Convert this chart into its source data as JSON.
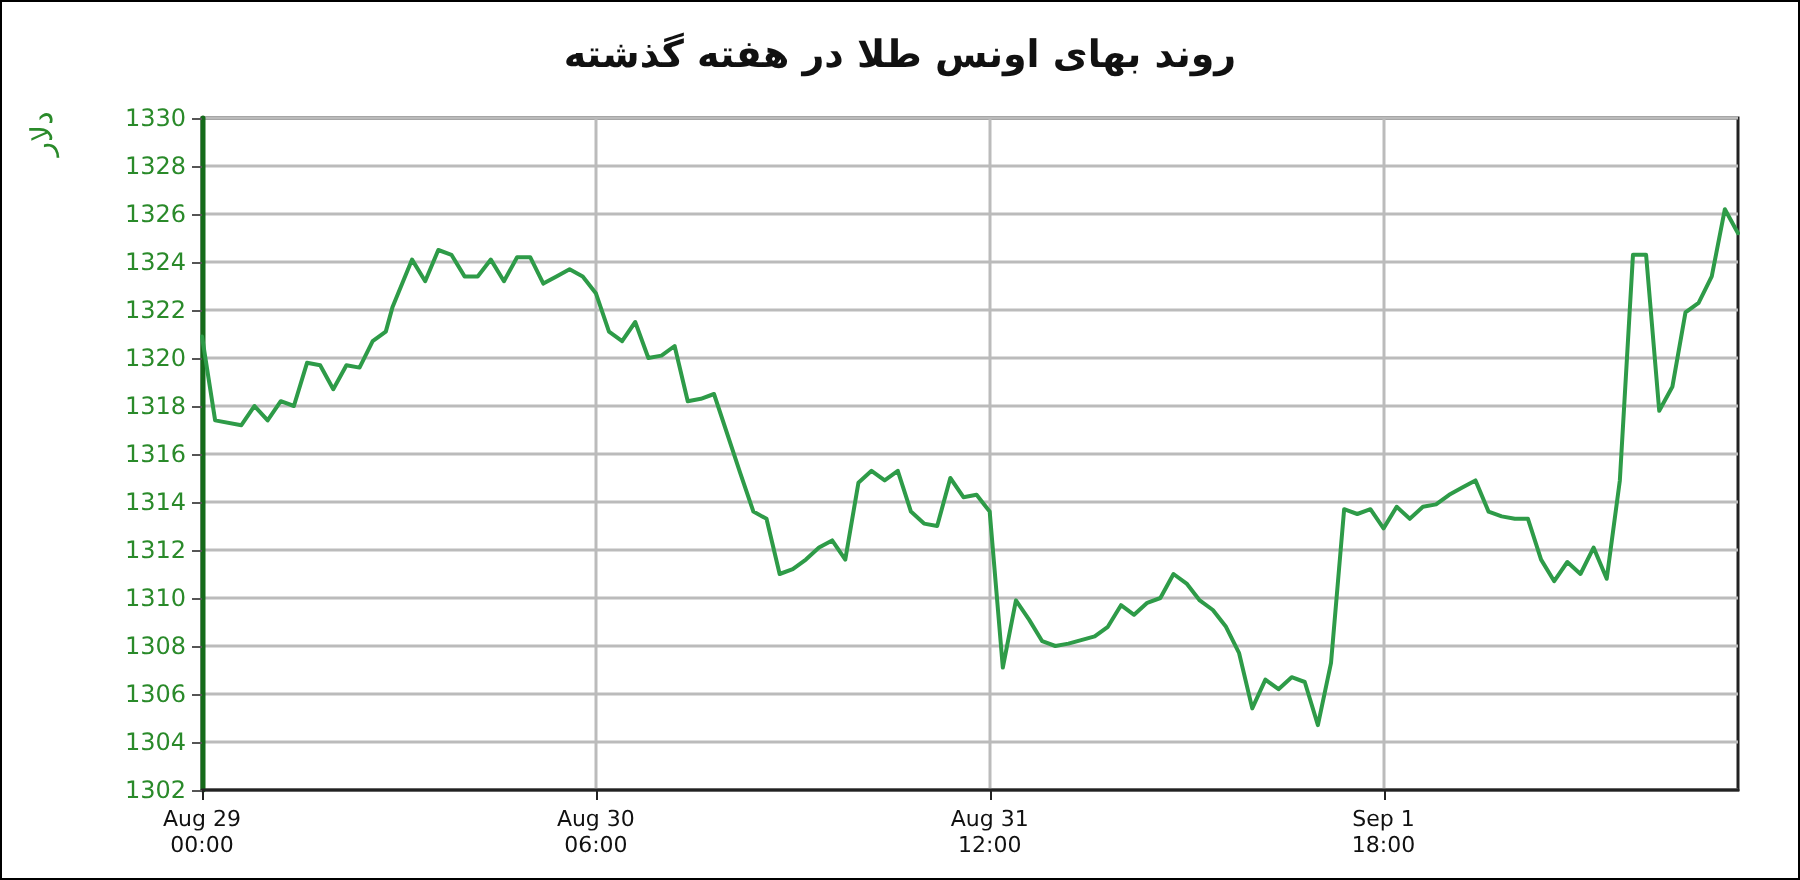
{
  "chart_data": {
    "type": "line",
    "title": "روند بهای اونس طلا در هفته گذشته",
    "ylabel": "دلار",
    "x": [
      "--08-29T00:00",
      "--08-29T01:00",
      "--08-29T03:00",
      "--08-29T04:00",
      "--08-29T05:00",
      "--08-29T06:00",
      "--08-29T07:00",
      "--08-29T08:00",
      "--08-29T09:00",
      "--08-29T10:00",
      "--08-29T11:00",
      "--08-29T12:00",
      "--08-29T13:00",
      "--08-29T14:00",
      "--08-29T14:30",
      "--08-29T16:00",
      "--08-29T17:00",
      "--08-29T18:00",
      "--08-29T19:00",
      "--08-29T20:00",
      "--08-29T21:00",
      "--08-29T22:00",
      "--08-29T23:00",
      "--08-30T00:00",
      "--08-30T01:00",
      "--08-30T02:00",
      "--08-30T03:00",
      "--08-30T04:00",
      "--08-30T05:00",
      "--08-30T06:00",
      "--08-30T07:00",
      "--08-30T08:00",
      "--08-30T09:00",
      "--08-30T10:00",
      "--08-30T11:00",
      "--08-30T12:00",
      "--08-30T13:00",
      "--08-30T14:00",
      "--08-30T15:00",
      "--08-30T17:00",
      "--08-30T18:00",
      "--08-30T19:00",
      "--08-30T20:00",
      "--08-30T21:00",
      "--08-30T22:00",
      "--08-30T23:00",
      "--08-31T00:00",
      "--08-31T01:00",
      "--08-31T02:00",
      "--08-31T03:00",
      "--08-31T04:00",
      "--08-31T05:00",
      "--08-31T06:00",
      "--08-31T07:00",
      "--08-31T08:00",
      "--08-31T09:00",
      "--08-31T10:00",
      "--08-31T11:00",
      "--08-31T12:00",
      "--08-31T13:00",
      "--08-31T14:00",
      "--08-31T15:00",
      "--08-31T16:00",
      "--08-31T17:00",
      "--08-31T18:00",
      "--08-31T20:00",
      "--08-31T21:00",
      "--08-31T22:00",
      "--08-31T23:00",
      "--09-01T00:00",
      "--09-01T01:00",
      "--09-01T02:00",
      "--09-01T03:00",
      "--09-01T04:00",
      "--09-01T05:00",
      "--09-01T06:00",
      "--09-01T07:00",
      "--09-01T08:00",
      "--09-01T09:00",
      "--09-01T10:00",
      "--09-01T11:00",
      "--09-01T12:00",
      "--09-01T13:00",
      "--09-01T14:00",
      "--09-01T15:00",
      "--09-01T16:00",
      "--09-01T17:00",
      "--09-01T18:00",
      "--09-01T19:00",
      "--09-01T20:00",
      "--09-01T21:00",
      "--09-01T22:00",
      "--09-01T23:00",
      "--09-02T00:00",
      "--09-02T01:00",
      "--09-02T02:00",
      "--09-02T03:00",
      "--09-02T04:00",
      "--09-02T05:00",
      "--09-02T06:00",
      "--09-02T07:00",
      "--09-02T08:00",
      "--09-02T09:00",
      "--09-02T10:00",
      "--09-02T11:00",
      "--09-02T12:00",
      "--09-02T13:00",
      "--09-02T14:00",
      "--09-02T15:00",
      "--09-02T16:00",
      "--09-02T17:00",
      "--09-02T18:00",
      "--09-02T19:00",
      "--09-02T20:00",
      "--09-02T21:00"
    ],
    "series": [
      {
        "color": "#2e9b48",
        "values": [
          1320.9,
          1317.4,
          1317.2,
          1318.0,
          1317.4,
          1318.2,
          1318.0,
          1319.8,
          1319.7,
          1318.7,
          1319.7,
          1319.6,
          1320.7,
          1321.1,
          1322.1,
          1324.1,
          1323.2,
          1324.5,
          1324.3,
          1323.4,
          1323.4,
          1324.1,
          1323.2,
          1324.2,
          1324.2,
          1323.1,
          1323.4,
          1323.7,
          1323.4,
          1322.7,
          1321.1,
          1320.7,
          1321.5,
          1320.0,
          1320.1,
          1320.5,
          1318.2,
          1318.3,
          1318.5,
          1315.2,
          1313.6,
          1313.3,
          1311.0,
          1311.2,
          1311.6,
          1312.1,
          1312.4,
          1311.6,
          1314.8,
          1315.3,
          1314.9,
          1315.3,
          1313.6,
          1313.1,
          1313.0,
          1315.0,
          1314.2,
          1314.3,
          1313.6,
          1307.1,
          1309.9,
          1309.1,
          1308.2,
          1308.0,
          1308.1,
          1308.4,
          1308.8,
          1309.7,
          1309.3,
          1309.8,
          1310.0,
          1311.0,
          1310.6,
          1309.9,
          1309.5,
          1308.8,
          1307.7,
          1305.4,
          1306.6,
          1306.2,
          1306.7,
          1306.5,
          1304.7,
          1307.3,
          1313.7,
          1313.5,
          1313.7,
          1312.9,
          1313.8,
          1313.3,
          1313.8,
          1313.9,
          1314.3,
          1314.6,
          1314.9,
          1313.6,
          1313.4,
          1313.3,
          1313.3,
          1311.6,
          1310.7,
          1311.5,
          1311.0,
          1312.1,
          1310.8,
          1314.9,
          1324.3,
          1324.3,
          1317.8,
          1318.8,
          1321.9,
          1322.3,
          1323.4,
          1326.2,
          1325.2
        ]
      }
    ],
    "xlim": [
      "--08-29T00:00",
      "--09-02T21:00"
    ],
    "xticks": [
      {
        "value": "--08-29T00:00",
        "label": "Aug 29\n00:00"
      },
      {
        "value": "--08-30T06:00",
        "label": "Aug 30\n06:00"
      },
      {
        "value": "--08-31T12:00",
        "label": "Aug 31\n12:00"
      },
      {
        "value": "--09-01T18:00",
        "label": "Sep 1\n18:00"
      }
    ],
    "ylim": [
      1302,
      1330
    ],
    "yticks": [
      1302,
      1304,
      1306,
      1308,
      1310,
      1312,
      1314,
      1316,
      1318,
      1320,
      1322,
      1324,
      1326,
      1328,
      1330
    ],
    "grid": true,
    "line_style": "solid"
  }
}
